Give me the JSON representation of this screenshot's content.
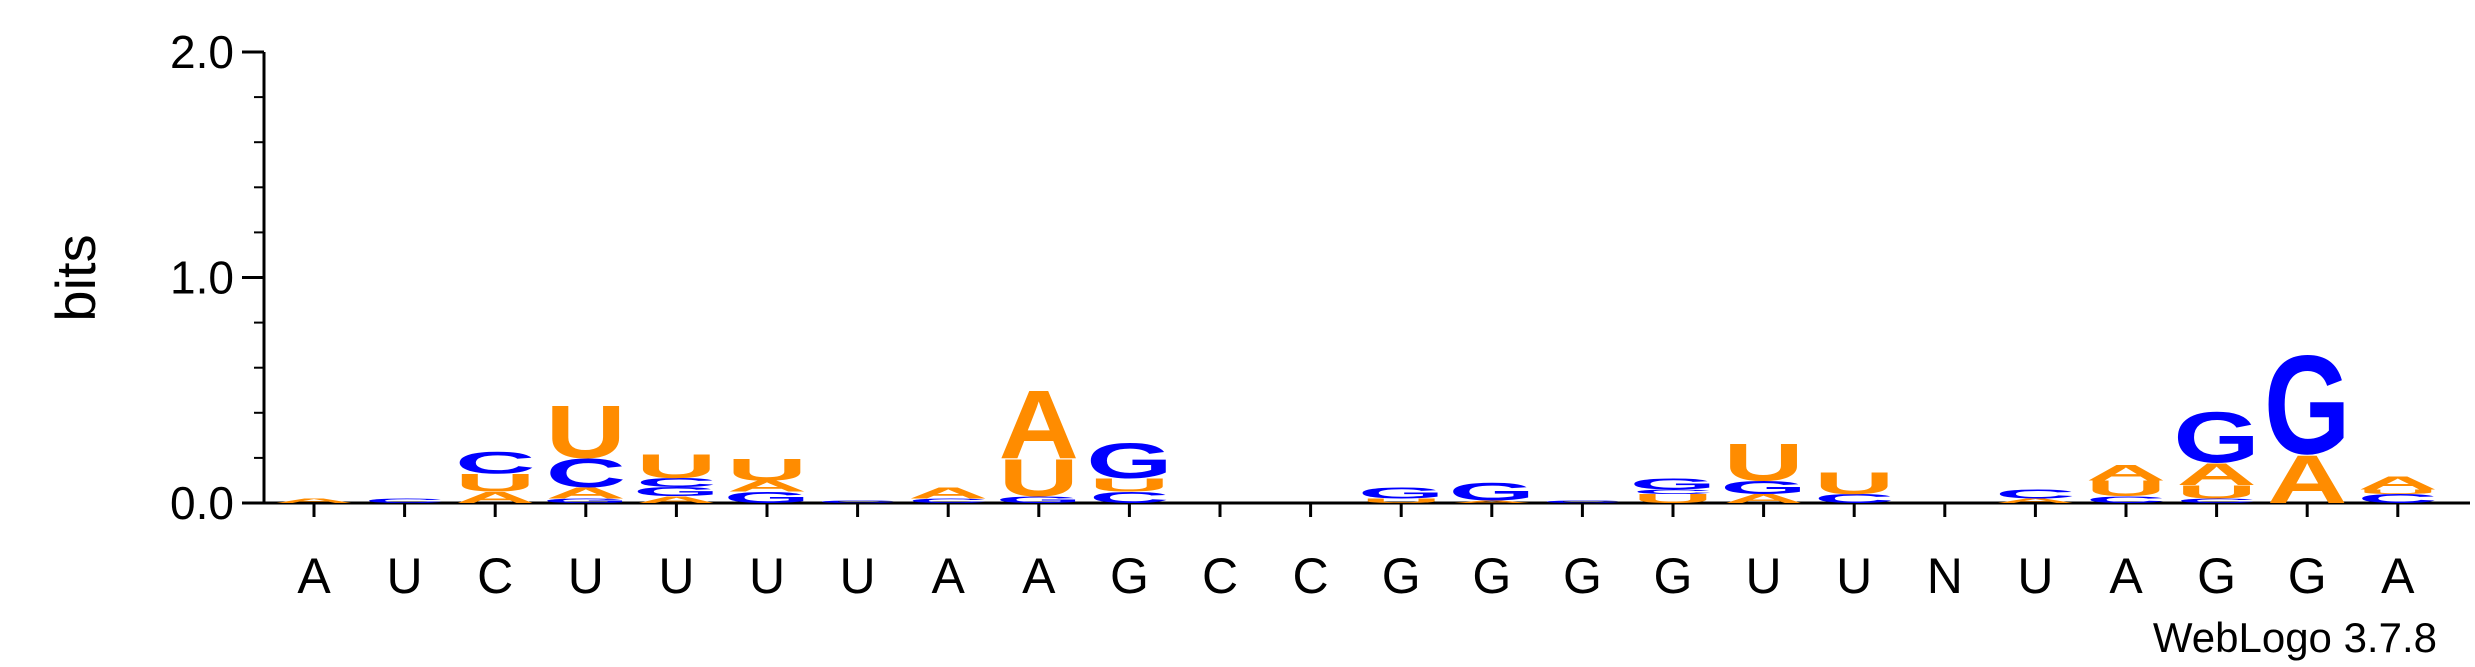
{
  "chart_data": {
    "type": "sequence-logo",
    "ylabel": "bits",
    "ylim": [
      0,
      2.0
    ],
    "y_ticks": [
      "0.0",
      "1.0",
      "2.0"
    ],
    "x_labels": [
      "A",
      "U",
      "C",
      "U",
      "U",
      "U",
      "U",
      "A",
      "A",
      "G",
      "C",
      "C",
      "G",
      "G",
      "G",
      "G",
      "U",
      "U",
      "N",
      "U",
      "A",
      "G",
      "G",
      "A"
    ],
    "colors": {
      "A": "#ff8c00",
      "U": "#ff8c00",
      "C": "#0000ff",
      "G": "#0000ff"
    },
    "columns": [
      [
        {
          "letter": "A",
          "height": 0.02
        }
      ],
      [
        {
          "letter": "C",
          "height": 0.02
        }
      ],
      [
        {
          "letter": "A",
          "height": 0.05
        },
        {
          "letter": "U",
          "height": 0.08
        },
        {
          "letter": "C",
          "height": 0.1
        }
      ],
      [
        {
          "letter": "G",
          "height": 0.02
        },
        {
          "letter": "A",
          "height": 0.05
        },
        {
          "letter": "C",
          "height": 0.13
        },
        {
          "letter": "U",
          "height": 0.24
        }
      ],
      [
        {
          "letter": "A",
          "height": 0.03
        },
        {
          "letter": "G",
          "height": 0.04
        },
        {
          "letter": "C",
          "height": 0.04
        },
        {
          "letter": "U",
          "height": 0.11
        }
      ],
      [
        {
          "letter": "G",
          "height": 0.05
        },
        {
          "letter": "A",
          "height": 0.05
        },
        {
          "letter": "U",
          "height": 0.1
        }
      ],
      [
        {
          "letter": "C",
          "height": 0.01
        }
      ],
      [
        {
          "letter": "C",
          "height": 0.02
        },
        {
          "letter": "A",
          "height": 0.05
        }
      ],
      [
        {
          "letter": "G",
          "height": 0.03
        },
        {
          "letter": "U",
          "height": 0.17
        },
        {
          "letter": "A",
          "height": 0.31
        }
      ],
      [
        {
          "letter": "C",
          "height": 0.05
        },
        {
          "letter": "U",
          "height": 0.06
        },
        {
          "letter": "G",
          "height": 0.16
        }
      ],
      [],
      [],
      [
        {
          "letter": "U",
          "height": 0.02
        },
        {
          "letter": "G",
          "height": 0.05
        }
      ],
      [
        {
          "letter": "A",
          "height": 0.01
        },
        {
          "letter": "G",
          "height": 0.08
        }
      ],
      [
        {
          "letter": "C",
          "height": 0.01
        }
      ],
      [
        {
          "letter": "U",
          "height": 0.04
        },
        {
          "letter": "C",
          "height": 0.02
        },
        {
          "letter": "G",
          "height": 0.05
        }
      ],
      [
        {
          "letter": "A",
          "height": 0.04
        },
        {
          "letter": "G",
          "height": 0.06
        },
        {
          "letter": "U",
          "height": 0.17
        }
      ],
      [
        {
          "letter": "C",
          "height": 0.04
        },
        {
          "letter": "U",
          "height": 0.1
        }
      ],
      [],
      [
        {
          "letter": "A",
          "height": 0.02
        },
        {
          "letter": "C",
          "height": 0.04
        }
      ],
      [
        {
          "letter": "C",
          "height": 0.03
        },
        {
          "letter": "U",
          "height": 0.07
        },
        {
          "letter": "A",
          "height": 0.07
        }
      ],
      [
        {
          "letter": "C",
          "height": 0.02
        },
        {
          "letter": "U",
          "height": 0.06
        },
        {
          "letter": "A",
          "height": 0.1
        },
        {
          "letter": "G",
          "height": 0.23
        }
      ],
      [
        {
          "letter": "A",
          "height": 0.22
        },
        {
          "letter": "G",
          "height": 0.45
        }
      ],
      [
        {
          "letter": "C",
          "height": 0.04
        },
        {
          "letter": "U",
          "height": 0.02
        },
        {
          "letter": "A",
          "height": 0.06
        }
      ]
    ]
  },
  "credit": "WebLogo 3.7.8"
}
